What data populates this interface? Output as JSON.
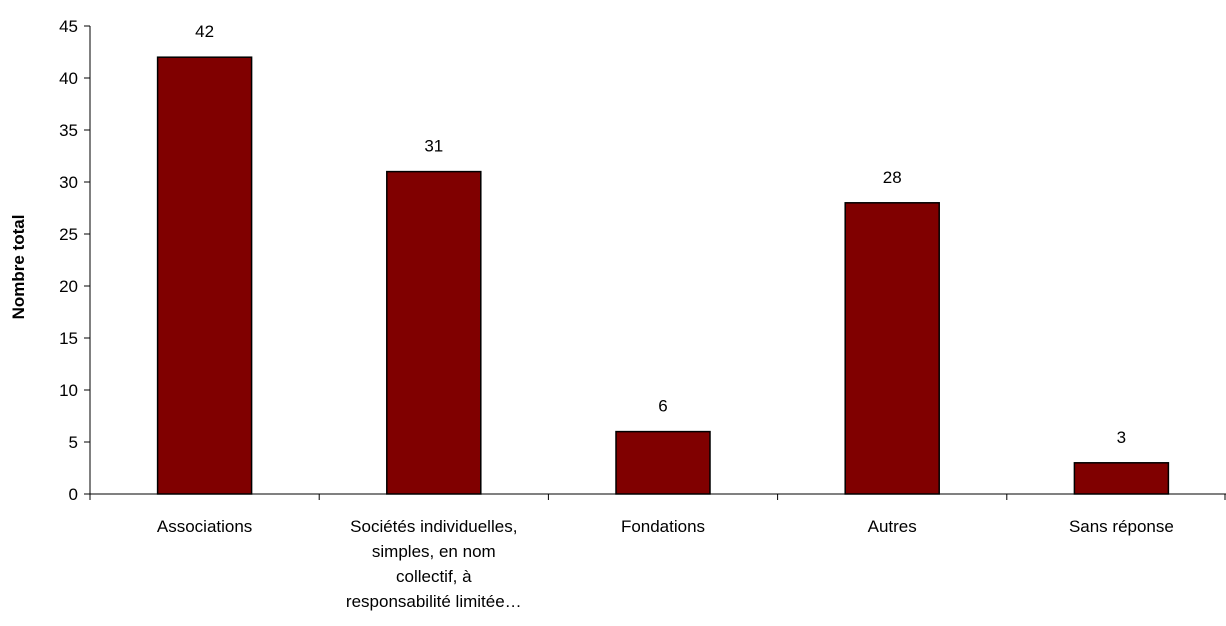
{
  "chart_data": {
    "type": "bar",
    "title": "",
    "xlabel": "",
    "ylabel": "Nombre total",
    "ylim": [
      0,
      45
    ],
    "ytick_step": 5,
    "yticks": [
      "0",
      "5",
      "10",
      "15",
      "20",
      "25",
      "30",
      "35",
      "40",
      "45"
    ],
    "grid": false,
    "legend": "none",
    "bar_color": "#800000",
    "categories": [
      [
        "Associations"
      ],
      [
        "Sociétés individuelles,",
        "simples, en nom",
        "collectif, à",
        "responsabilité limitée…"
      ],
      [
        "Fondations"
      ],
      [
        "Autres"
      ],
      [
        "Sans réponse"
      ]
    ],
    "values": [
      42,
      31,
      6,
      28,
      3
    ],
    "value_labels": [
      "42",
      "31",
      "6",
      "28",
      "3"
    ]
  }
}
